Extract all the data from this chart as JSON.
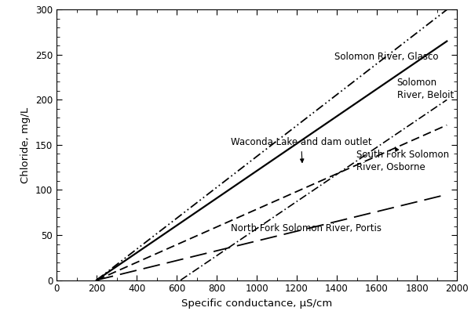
{
  "xlabel": "Specific conductance, μS/cm",
  "ylabel": "Chloride, mg/L",
  "xlim": [
    0,
    2000
  ],
  "ylim": [
    0,
    300
  ],
  "xticks": [
    0,
    200,
    400,
    600,
    800,
    1000,
    1200,
    1400,
    1600,
    1800,
    2000
  ],
  "yticks": [
    0,
    50,
    100,
    150,
    200,
    250,
    300
  ],
  "lines": [
    {
      "name": "Solomon River, Glasco",
      "x": [
        200,
        1950
      ],
      "y": [
        0,
        300
      ],
      "color": "#000000"
    },
    {
      "name": "Solomon River, Beloit",
      "x": [
        200,
        1950
      ],
      "y": [
        0,
        265
      ],
      "color": "#000000"
    },
    {
      "name": "Waconda Lake and dam outlet",
      "x": [
        620,
        1950
      ],
      "y": [
        0,
        200
      ],
      "color": "#000000"
    },
    {
      "name": "South Fork Solomon River, Osborne",
      "x": [
        200,
        1950
      ],
      "y": [
        0,
        172
      ],
      "color": "#000000"
    },
    {
      "name": "North Fork Solomon River, Portis",
      "x": [
        200,
        1950
      ],
      "y": [
        0,
        95
      ],
      "color": "#000000"
    }
  ],
  "figsize": [
    6.0,
    4.11
  ],
  "dpi": 100,
  "background_color": "#ffffff",
  "font_size": 8.5,
  "axis_label_fontsize": 9.5
}
